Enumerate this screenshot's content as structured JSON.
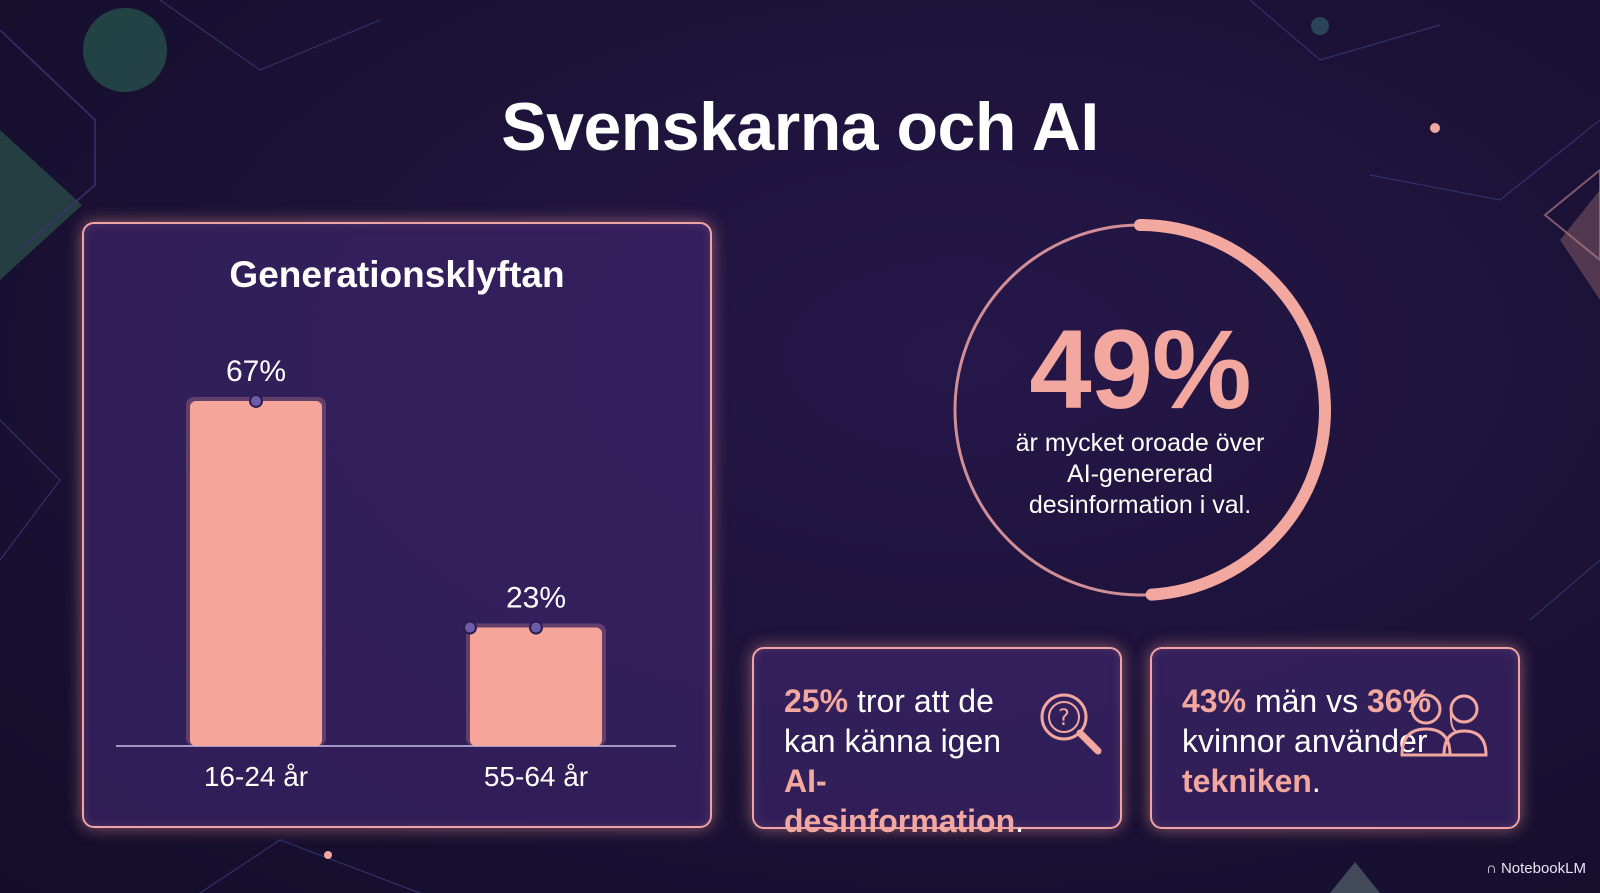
{
  "title": "Svenskarna och AI",
  "chart_data": {
    "type": "bar",
    "title": "Generationsklyftan",
    "categories": [
      "16-24 år",
      "55-64 år"
    ],
    "values": [
      67,
      23
    ],
    "value_labels": [
      "67%",
      "23%"
    ],
    "ylim": [
      0,
      80
    ],
    "bar_color": "#f6a59b",
    "grid": false,
    "legend": "none"
  },
  "ring": {
    "percent": 49,
    "value_label": "49%",
    "description": "är mycket oroade över AI-genererad desinformation i val.",
    "color": "#f2a79f"
  },
  "card1": {
    "value": "25%",
    "text1": " tror att de kan känna igen ",
    "emphasis": "AI-desinformation",
    "end": ".",
    "icon": "magnifier-question-icon"
  },
  "card2": {
    "value1": "43%",
    "text1": " män vs ",
    "value2": "36%",
    "text2": " kvinnor använder ",
    "emphasis": "tekniken",
    "end": ".",
    "icon": "people-icon"
  },
  "brand": "NotebookLM",
  "colors": {
    "background": "#1b1236",
    "panel": "#3a2468",
    "accent": "#f2a79f",
    "border": "#f0a3a4"
  }
}
